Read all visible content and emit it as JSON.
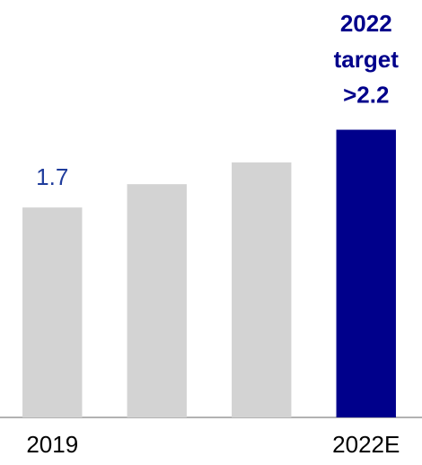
{
  "chart_data": {
    "type": "bar",
    "categories": [
      "2019",
      null,
      null,
      "2022E"
    ],
    "values": [
      1.7,
      1.85,
      1.99,
      2.2
    ],
    "value_labels": [
      "1.7",
      null,
      null,
      ">2.2"
    ],
    "annotation": [
      "2022",
      "target"
    ],
    "colors": [
      "#d3d3d3",
      "#d3d3d3",
      "#d3d3d3",
      "#00008b"
    ],
    "label_colors": [
      "#1f3c9c",
      null,
      null,
      "#00008b"
    ],
    "ylim": [
      0.35,
      2.89
    ]
  }
}
